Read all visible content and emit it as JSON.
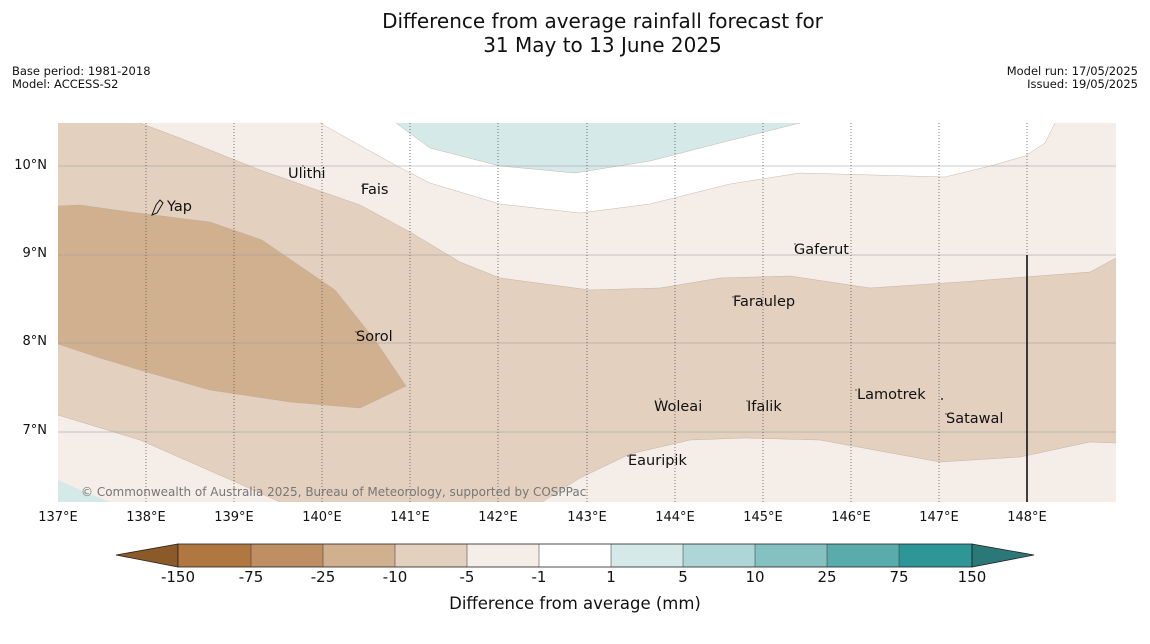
{
  "header": {
    "title_line1": "Difference from average rainfall forecast for",
    "title_line2": "31 May to 13 June 2025",
    "base_period": "Base period: 1981-2018",
    "model": "Model: ACCESS-S2",
    "model_run": "Model run: 17/05/2025",
    "issued": "Issued: 19/05/2025"
  },
  "map": {
    "latitude_labels": [
      "10°N",
      "9°N",
      "8°N",
      "7°N"
    ],
    "longitude_labels": [
      "137°E",
      "138°E",
      "139°E",
      "140°E",
      "141°E",
      "142°E",
      "143°E",
      "144°E",
      "145°E",
      "146°E",
      "147°E",
      "148°E"
    ],
    "places": [
      {
        "name": "Yap",
        "lon": 138.2,
        "lat": 9.5
      },
      {
        "name": "Ulithi",
        "lon": 139.6,
        "lat": 9.9
      },
      {
        "name": "Fais",
        "lon": 140.4,
        "lat": 9.7
      },
      {
        "name": "Gaferut",
        "lon": 145.35,
        "lat": 9.0
      },
      {
        "name": "Faraulep",
        "lon": 144.6,
        "lat": 8.45
      },
      {
        "name": "Sorol",
        "lon": 140.35,
        "lat": 8.05
      },
      {
        "name": "Woleai",
        "lon": 143.8,
        "lat": 7.25
      },
      {
        "name": "Ifalik",
        "lon": 144.8,
        "lat": 7.25
      },
      {
        "name": "Lamotrek",
        "lon": 146.05,
        "lat": 7.4
      },
      {
        "name": "Satawal",
        "lon": 147.05,
        "lat": 7.1
      },
      {
        "name": "Eauripik",
        "lon": 143.45,
        "lat": 6.65
      }
    ],
    "copyright": "© Commonwealth of Australia 2025, Bureau of Meteorology, supported by COSPPac"
  },
  "colorbar": {
    "ticks": [
      "-150",
      "-75",
      "-25",
      "-10",
      "-5",
      "-1",
      "1",
      "5",
      "10",
      "25",
      "75",
      "150"
    ],
    "colors": [
      "#b07840",
      "#bf8e63",
      "#d1b08f",
      "#e3d0bf",
      "#f5ede7",
      "#ffffff",
      "#d5e9e8",
      "#aed6d7",
      "#84c1c0",
      "#5aabac",
      "#2e9696"
    ],
    "extend_low_color": "#8c5a28",
    "extend_high_color": "#2a7878",
    "label": "Difference from average (mm)"
  }
}
